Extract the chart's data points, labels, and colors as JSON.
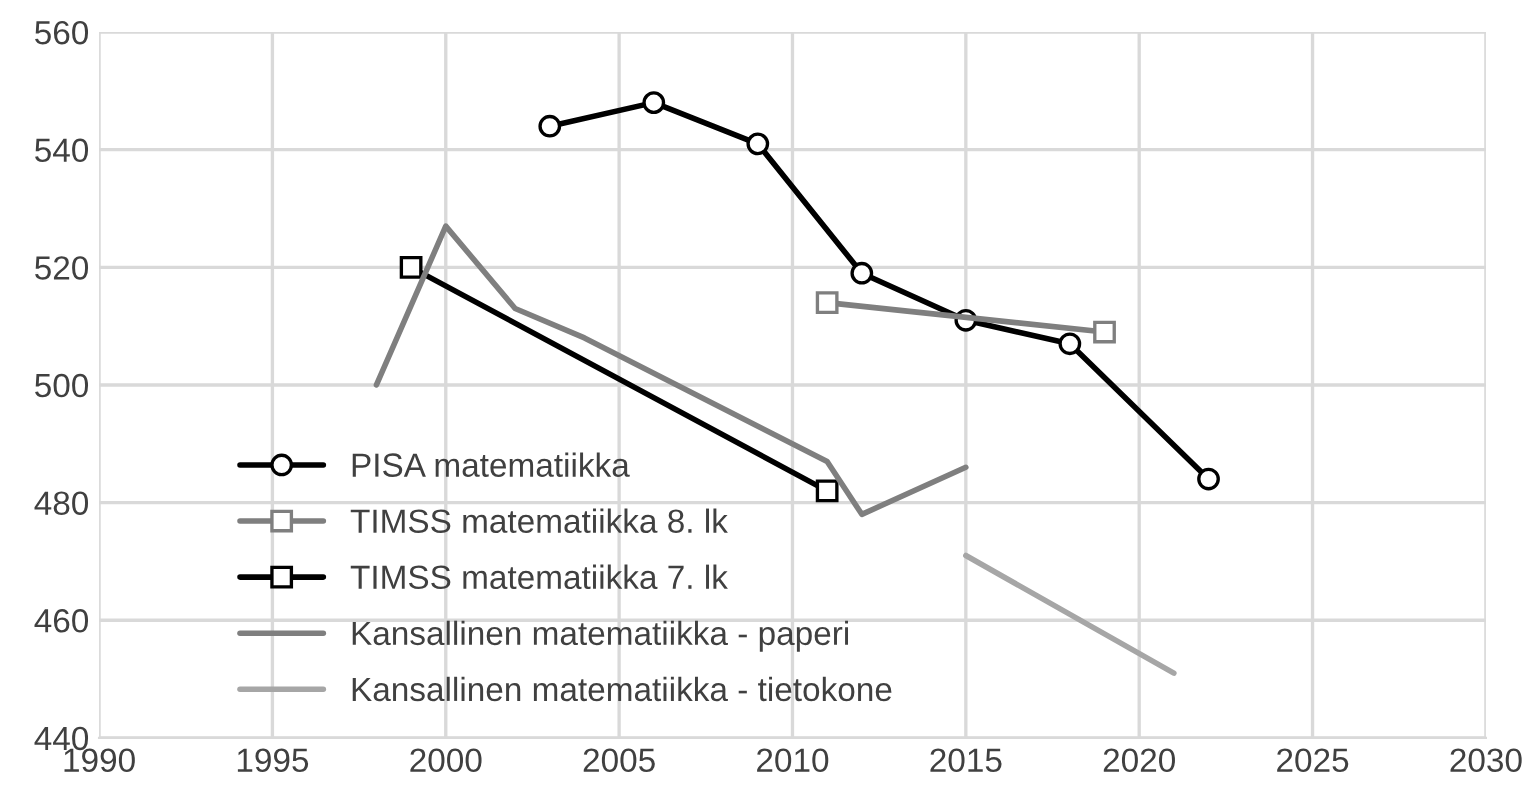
{
  "chart_data": {
    "type": "line",
    "series": [
      {
        "name": "PISA matematiikka",
        "color": "#000000",
        "marker": "circle",
        "x": [
          2003,
          2006,
          2009,
          2012,
          2015,
          2018,
          2022
        ],
        "values": [
          544,
          548,
          541,
          519,
          511,
          507,
          484
        ]
      },
      {
        "name": "TIMSS matematiikka 8. lk",
        "color": "#7f7f7f",
        "marker": "square",
        "x": [
          2011,
          2019
        ],
        "values": [
          514,
          509
        ]
      },
      {
        "name": "TIMSS matematiikka 7. lk",
        "color": "#000000",
        "marker": "square",
        "x": [
          1999,
          2011
        ],
        "values": [
          520,
          482
        ]
      },
      {
        "name": "Kansallinen matematiikka - paperi",
        "color": "#7f7f7f",
        "marker": "none",
        "x": [
          1998,
          2000,
          2002,
          2004,
          2011,
          2012,
          2015
        ],
        "values": [
          500,
          527,
          513,
          508,
          487,
          478,
          486
        ]
      },
      {
        "name": "Kansallinen matematiikka - tietokone",
        "color": "#a6a6a6",
        "marker": "none",
        "x": [
          2015,
          2021
        ],
        "values": [
          471,
          451
        ]
      }
    ],
    "xlim": [
      1990,
      2030
    ],
    "xticks": [
      1990,
      1995,
      2000,
      2005,
      2010,
      2015,
      2020,
      2025,
      2030
    ],
    "ylim": [
      440,
      560
    ],
    "yticks": [
      440,
      460,
      480,
      500,
      520,
      540,
      560
    ],
    "grid": true,
    "legend": "bottom left"
  }
}
